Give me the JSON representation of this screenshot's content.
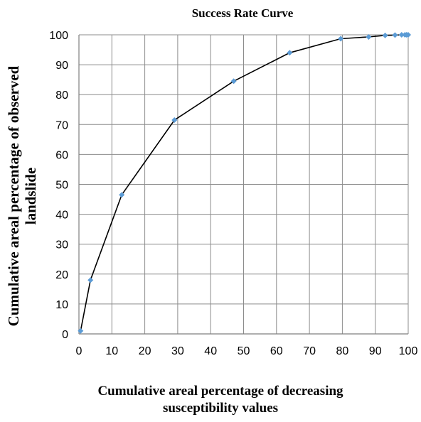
{
  "chart_data": {
    "type": "line",
    "title": "Success Rate Curve",
    "xlabel_lines": [
      "Cumulative areal percentage of decreasing",
      "susceptibility values"
    ],
    "ylabel_lines": [
      "Cumulative areal percentage of observed",
      "landslide"
    ],
    "xlim": [
      0,
      100
    ],
    "ylim": [
      0,
      100
    ],
    "x_ticks": [
      0,
      10,
      20,
      30,
      40,
      50,
      60,
      70,
      80,
      90,
      100
    ],
    "y_ticks": [
      0,
      10,
      20,
      30,
      40,
      50,
      60,
      70,
      80,
      90,
      100
    ],
    "grid": true,
    "legend": "none",
    "line_color": "#000000",
    "marker_color": "#5b9bd5",
    "series": [
      {
        "points": [
          [
            0.5,
            1.0
          ],
          [
            3.5,
            18.0
          ],
          [
            13.0,
            46.5
          ],
          [
            29.0,
            71.5
          ],
          [
            47.0,
            84.5
          ],
          [
            64.0,
            94.0
          ],
          [
            79.5,
            98.7
          ],
          [
            88.0,
            99.3
          ],
          [
            93.0,
            99.8
          ],
          [
            96.0,
            99.9
          ],
          [
            98.0,
            100.0
          ],
          [
            99.0,
            100.0
          ],
          [
            99.5,
            100.0
          ],
          [
            100.0,
            100.0
          ]
        ]
      }
    ]
  }
}
